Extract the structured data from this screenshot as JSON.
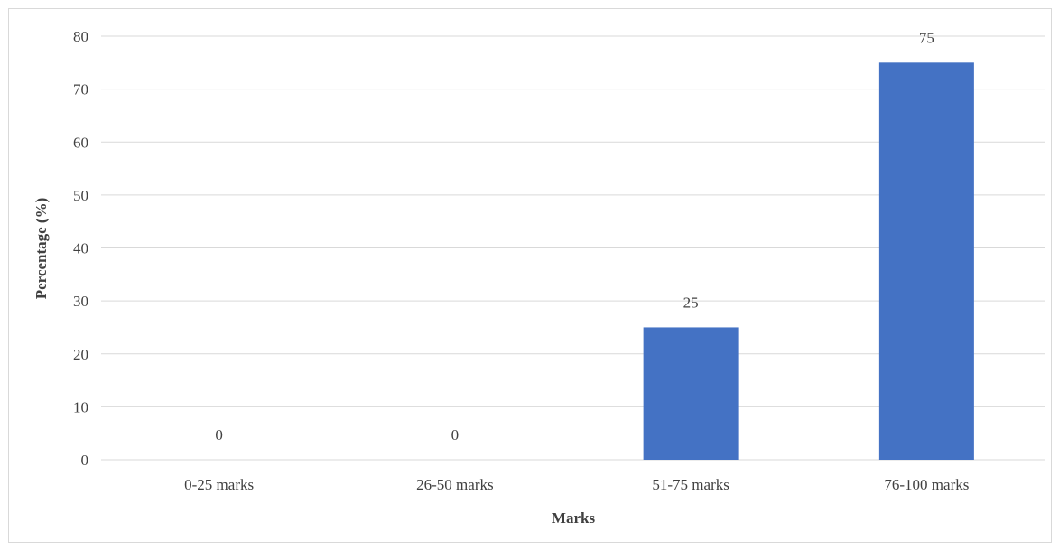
{
  "chart_data": {
    "type": "bar",
    "categories": [
      "0-25 marks",
      "26-50 marks",
      "51-75 marks",
      "76-100 marks"
    ],
    "values": [
      0,
      0,
      25,
      75
    ],
    "data_labels": [
      "0",
      "0",
      "25",
      "75"
    ],
    "title": "",
    "xlabel": "Marks",
    "ylabel": "Percentage (%)",
    "ylim": [
      0,
      80
    ],
    "yticks": [
      0,
      10,
      20,
      30,
      40,
      50,
      60,
      70,
      80
    ],
    "ytick_labels": [
      "0",
      "10",
      "20",
      "30",
      "40",
      "50",
      "60",
      "70",
      "80"
    ],
    "grid": true,
    "legend": "none",
    "bar_color": "#4472c4",
    "grid_color": "#d9d9d9",
    "text_color": "#404040"
  }
}
